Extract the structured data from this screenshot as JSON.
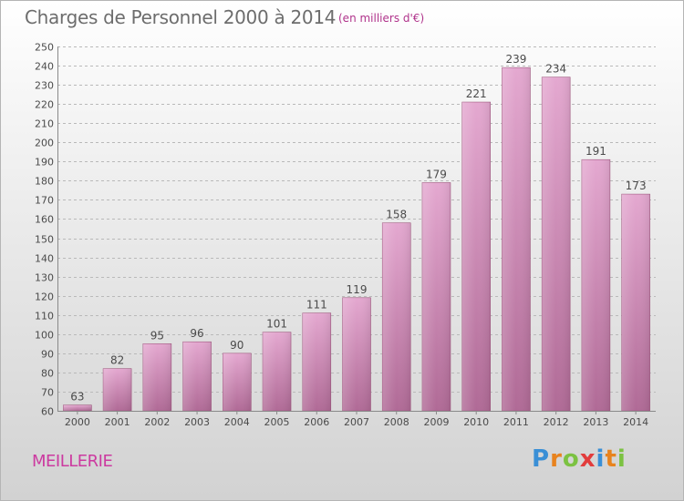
{
  "header": {
    "title": "Charges de Personnel 2000 à 2014",
    "subtitle": "(en milliers d'€)"
  },
  "commune": "MEILLERIE",
  "logo": {
    "text": "Proxiti",
    "letters": [
      {
        "ch": "P",
        "color": "#3a8fd6"
      },
      {
        "ch": "r",
        "color": "#e8831e"
      },
      {
        "ch": "o",
        "color": "#7cc242"
      },
      {
        "ch": "x",
        "color": "#e23c3c"
      },
      {
        "ch": "i",
        "color": "#3a8fd6"
      },
      {
        "ch": "t",
        "color": "#e8831e"
      },
      {
        "ch": "i",
        "color": "#7cc242"
      }
    ]
  },
  "colors": {
    "bar_top": "#e4a8d0",
    "bar_bottom": "#b06a96",
    "bar_edge": "#a0587f",
    "grid": "#b9b9b9",
    "axis_text": "#4a4a4a"
  },
  "chart_data": {
    "type": "bar",
    "categories": [
      "2000",
      "2001",
      "2002",
      "2003",
      "2004",
      "2005",
      "2006",
      "2007",
      "2008",
      "2009",
      "2010",
      "2011",
      "2012",
      "2013",
      "2014"
    ],
    "values": [
      63,
      82,
      95,
      96,
      90,
      101,
      111,
      119,
      158,
      179,
      221,
      239,
      234,
      191,
      173
    ],
    "data_labels": [
      "63",
      "82",
      "95",
      "96",
      "90",
      "101",
      "111",
      "119",
      "158",
      "179",
      "221",
      "239",
      "234",
      "191",
      "173"
    ],
    "ylim": [
      60,
      250
    ],
    "yticks": [
      60,
      70,
      80,
      90,
      100,
      110,
      120,
      130,
      140,
      150,
      160,
      170,
      180,
      190,
      200,
      210,
      220,
      230,
      240,
      250
    ],
    "grid": true,
    "legend": "none"
  }
}
